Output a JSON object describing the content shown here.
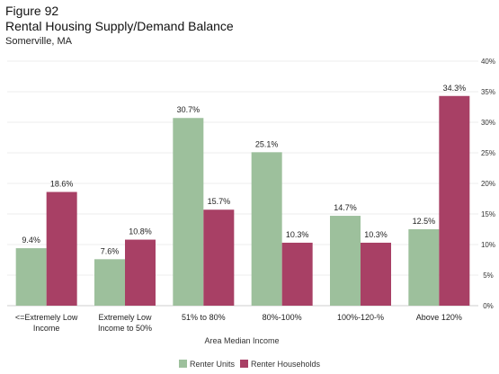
{
  "figure_label": "Figure 92",
  "chart_data": {
    "type": "bar",
    "title": "Rental Housing Supply/Demand Balance",
    "subtitle": "Somerville, MA",
    "xlabel": "Area Median Income",
    "ylabel": "",
    "ylim": [
      0,
      40
    ],
    "yticks": [
      "0%",
      "5%",
      "10%",
      "15%",
      "20%",
      "25%",
      "30%",
      "35%",
      "40%"
    ],
    "y_axis_position": "right",
    "grid": true,
    "legend_position": "bottom",
    "categories": [
      [
        "<=Extremely Low",
        "Income"
      ],
      [
        "Extremely Low",
        "Income to 50%"
      ],
      [
        "51% to 80%"
      ],
      [
        "80%-100%"
      ],
      [
        "100%-120-%"
      ],
      [
        "Above 120%"
      ]
    ],
    "series": [
      {
        "name": "Renter Units",
        "color": "#9dc09c",
        "values": [
          9.4,
          7.6,
          30.7,
          25.1,
          14.7,
          12.5
        ],
        "labels": [
          "9.4%",
          "7.6%",
          "30.7%",
          "25.1%",
          "14.7%",
          "12.5%"
        ]
      },
      {
        "name": "Renter Households",
        "color": "#a84065",
        "values": [
          18.6,
          10.8,
          15.7,
          10.3,
          10.3,
          34.3
        ],
        "labels": [
          "18.6%",
          "10.8%",
          "15.7%",
          "10.3%",
          "10.3%",
          "34.3%"
        ]
      }
    ]
  }
}
